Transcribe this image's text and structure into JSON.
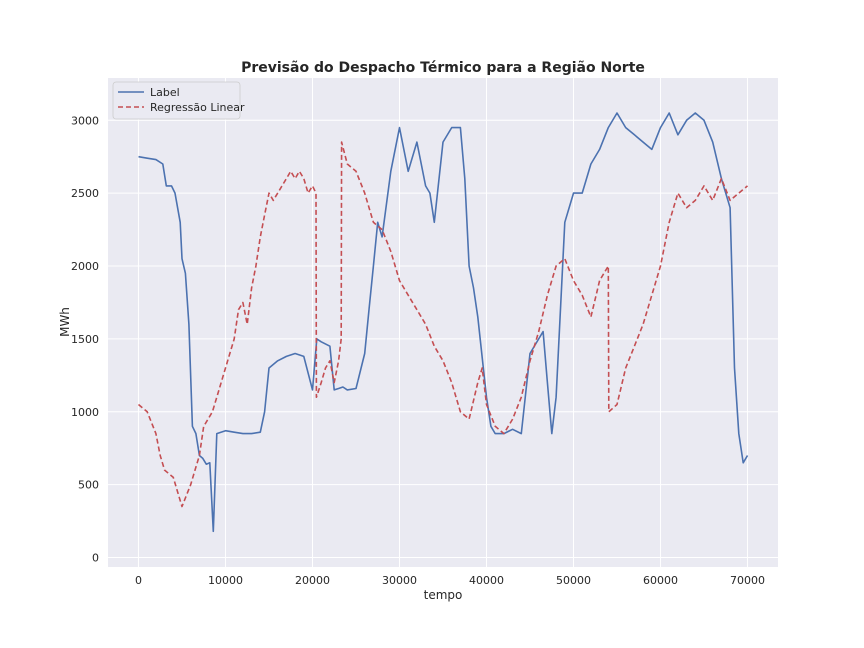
{
  "chart_data": {
    "type": "line",
    "title": "Previsão do Despacho Térmico para a Região Norte",
    "xlabel": "tempo",
    "ylabel": "MWh",
    "xlim": [
      -3500,
      73500
    ],
    "ylim": [
      -65,
      3290
    ],
    "xticks": [
      0,
      10000,
      20000,
      30000,
      40000,
      50000,
      60000,
      70000
    ],
    "yticks": [
      0,
      500,
      1000,
      1500,
      2000,
      2500,
      3000
    ],
    "grid": true,
    "legend_position": "top-left",
    "background": "#eaeaf2",
    "series": [
      {
        "name": "Label",
        "color": "#4c72b0",
        "style": "solid",
        "x": [
          0,
          1000,
          2000,
          2800,
          3200,
          3800,
          4200,
          4800,
          5000,
          5400,
          5800,
          6200,
          6600,
          7000,
          7400,
          7800,
          8200,
          8600,
          9000,
          10000,
          11000,
          12000,
          13000,
          14000,
          14500,
          15000,
          16000,
          17000,
          18000,
          19000,
          20000,
          20500,
          21000,
          22000,
          22500,
          23000,
          23500,
          24000,
          25000,
          26000,
          26500,
          27000,
          27500,
          28000,
          29000,
          30000,
          31000,
          32000,
          33000,
          33500,
          34000,
          35000,
          36000,
          37000,
          37500,
          38000,
          38500,
          39000,
          40000,
          40500,
          41000,
          42000,
          43000,
          44000,
          45000,
          46000,
          46500,
          47000,
          47500,
          48000,
          49000,
          50000,
          51000,
          52000,
          53000,
          54000,
          55000,
          56000,
          57000,
          58000,
          59000,
          60000,
          61000,
          62000,
          63000,
          64000,
          65000,
          66000,
          67000,
          68000,
          68500,
          69000,
          69500,
          70000
        ],
        "values": [
          2750,
          2740,
          2730,
          2700,
          2550,
          2550,
          2500,
          2300,
          2050,
          1950,
          1600,
          900,
          850,
          700,
          680,
          640,
          650,
          180,
          850,
          870,
          860,
          850,
          850,
          860,
          1000,
          1300,
          1350,
          1380,
          1400,
          1380,
          1150,
          1500,
          1480,
          1450,
          1150,
          1160,
          1170,
          1150,
          1160,
          1400,
          1700,
          2000,
          2300,
          2200,
          2650,
          2950,
          2650,
          2850,
          2550,
          2500,
          2300,
          2850,
          2950,
          2950,
          2600,
          2000,
          1850,
          1650,
          1100,
          900,
          850,
          850,
          880,
          850,
          1400,
          1500,
          1550,
          1200,
          850,
          1100,
          2300,
          2500,
          2500,
          2700,
          2800,
          2950,
          3050,
          2950,
          2900,
          2850,
          2800,
          2950,
          3050,
          2900,
          3000,
          3050,
          3000,
          2850,
          2600,
          2400,
          1300,
          850,
          650,
          700
        ]
      },
      {
        "name": "Regressão Linear",
        "color": "#c44e52",
        "style": "dashed",
        "x": [
          0,
          1000,
          2000,
          2500,
          3000,
          4000,
          4500,
          5000,
          6000,
          6500,
          7000,
          7500,
          8000,
          8500,
          9000,
          10000,
          11000,
          11500,
          12000,
          12500,
          13000,
          13500,
          14000,
          14500,
          15000,
          15500,
          16000,
          16500,
          17000,
          17500,
          18000,
          18500,
          19000,
          19500,
          20000,
          20400,
          20450,
          21000,
          21500,
          22000,
          22500,
          23000,
          23300,
          23350,
          24000,
          25000,
          26000,
          27000,
          28000,
          29000,
          30000,
          31000,
          32000,
          33000,
          34000,
          35000,
          36000,
          37000,
          38000,
          39000,
          39500,
          40000,
          41000,
          42000,
          43000,
          44000,
          45000,
          46000,
          47000,
          48000,
          49000,
          50000,
          51000,
          52000,
          53000,
          54000,
          54050,
          55000,
          56000,
          57000,
          58000,
          59000,
          60000,
          61000,
          62000,
          63000,
          64000,
          65000,
          66000,
          67000,
          68000,
          69000,
          70000
        ],
        "values": [
          1050,
          1000,
          850,
          700,
          600,
          550,
          450,
          350,
          500,
          600,
          700,
          900,
          950,
          1000,
          1100,
          1300,
          1500,
          1700,
          1750,
          1600,
          1850,
          2000,
          2200,
          2350,
          2500,
          2450,
          2500,
          2550,
          2600,
          2650,
          2600,
          2650,
          2600,
          2500,
          2550,
          2500,
          1100,
          1200,
          1300,
          1350,
          1200,
          1350,
          1500,
          2850,
          2700,
          2650,
          2500,
          2300,
          2250,
          2100,
          1900,
          1800,
          1700,
          1600,
          1450,
          1350,
          1200,
          1000,
          950,
          1200,
          1300,
          1050,
          900,
          850,
          950,
          1100,
          1350,
          1550,
          1800,
          2000,
          2050,
          1900,
          1800,
          1650,
          1900,
          2000,
          1000,
          1050,
          1300,
          1450,
          1600,
          1800,
          2000,
          2300,
          2500,
          2400,
          2450,
          2550,
          2450,
          2600,
          2450,
          2500,
          2550
        ]
      }
    ]
  }
}
